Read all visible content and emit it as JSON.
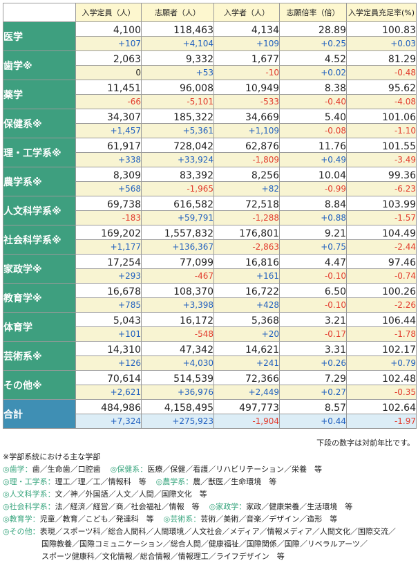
{
  "columns": [
    "入学定員（人）",
    "志願者（人）",
    "入学者（人）",
    "志願倍率（倍）",
    "入学定員充足率(%)"
  ],
  "rows": [
    {
      "label": "医学",
      "values": [
        "4,100",
        "118,463",
        "4,134",
        "28.89",
        "100.83"
      ],
      "changes": [
        "+107",
        "+4,104",
        "+109",
        "+0.25",
        "+0.03"
      ]
    },
    {
      "label": "歯学※",
      "values": [
        "2,063",
        "9,332",
        "1,677",
        "4.52",
        "81.29"
      ],
      "changes": [
        "0",
        "+53",
        "-10",
        "+0.02",
        "-0.48"
      ]
    },
    {
      "label": "薬学",
      "values": [
        "11,451",
        "96,008",
        "10,949",
        "8.38",
        "95.62"
      ],
      "changes": [
        "-66",
        "-5,101",
        "-533",
        "-0.40",
        "-4.08"
      ]
    },
    {
      "label": "保健系※",
      "values": [
        "34,307",
        "185,322",
        "34,669",
        "5.40",
        "101.06"
      ],
      "changes": [
        "+1,457",
        "+5,361",
        "+1,109",
        "-0.08",
        "-1.10"
      ]
    },
    {
      "label": "理・工学系※",
      "values": [
        "61,917",
        "728,042",
        "62,876",
        "11.76",
        "101.55"
      ],
      "changes": [
        "+338",
        "+33,924",
        "-1,809",
        "+0.49",
        "-3.49"
      ]
    },
    {
      "label": "農学系※",
      "values": [
        "8,309",
        "83,392",
        "8,256",
        "10.04",
        "99.36"
      ],
      "changes": [
        "+568",
        "-1,965",
        "+82",
        "-0.99",
        "-6.23"
      ]
    },
    {
      "label": "人文科学系※",
      "values": [
        "69,738",
        "616,582",
        "72,518",
        "8.84",
        "103.99"
      ],
      "changes": [
        "-183",
        "+59,791",
        "-1,288",
        "+0.88",
        "-1.57"
      ]
    },
    {
      "label": "社会科学系※",
      "values": [
        "169,202",
        "1,557,832",
        "176,801",
        "9.21",
        "104.49"
      ],
      "changes": [
        "+1,177",
        "+136,367",
        "-2,863",
        "+0.75",
        "-2.44"
      ]
    },
    {
      "label": "家政学※",
      "values": [
        "17,254",
        "77,099",
        "16,816",
        "4.47",
        "97.46"
      ],
      "changes": [
        "+293",
        "-467",
        "+161",
        "-0.10",
        "-0.74"
      ]
    },
    {
      "label": "教育学※",
      "values": [
        "16,678",
        "108,370",
        "16,722",
        "6.50",
        "100.26"
      ],
      "changes": [
        "+785",
        "+3,398",
        "+428",
        "-0.10",
        "-2.26"
      ]
    },
    {
      "label": "体育学",
      "values": [
        "5,043",
        "16,172",
        "5,368",
        "3.21",
        "106.44"
      ],
      "changes": [
        "+101",
        "-548",
        "+20",
        "-0.17",
        "-1.78"
      ]
    },
    {
      "label": "芸術系※",
      "values": [
        "14,310",
        "47,342",
        "14,621",
        "3.31",
        "102.17"
      ],
      "changes": [
        "+126",
        "+4,030",
        "+241",
        "+0.26",
        "+0.79"
      ]
    },
    {
      "label": "その他※",
      "values": [
        "70,614",
        "514,539",
        "72,366",
        "7.29",
        "102.48"
      ],
      "changes": [
        "+2,621",
        "+36,976",
        "+2,449",
        "+0.27",
        "-0.35"
      ]
    },
    {
      "label": "合計",
      "values": [
        "484,986",
        "4,158,495",
        "497,773",
        "8.57",
        "102.64"
      ],
      "changes": [
        "+7,324",
        "+275,923",
        "-1,904",
        "+0.44",
        "-1.97"
      ],
      "total": true
    }
  ],
  "note": "下段の数字は対前年比です。",
  "legend": {
    "title": "※学部系統における主な学部",
    "lines": [
      [
        {
          "cat": "◎歯学：",
          "text": "歯／生命歯／口腔歯"
        },
        {
          "cat": "◎保健系：",
          "text": "医療／保健／看護／リハビリテーション／栄養　等"
        }
      ],
      [
        {
          "cat": "◎理・工学系：",
          "text": "理工／理／工／情報科　等"
        },
        {
          "cat": "◎農学系：",
          "text": "農／獣医／生命環境　等"
        }
      ],
      [
        {
          "cat": "◎人文科学系：",
          "text": "文／神／外国語／人文／人間／国際文化　等"
        }
      ],
      [
        {
          "cat": "◎社会科学系：",
          "text": "法／経済／経営／商／社会福祉／情報　等"
        },
        {
          "cat": "◎家政学：",
          "text": "家政／健康栄養／生活環境　等"
        }
      ],
      [
        {
          "cat": "◎教育学：",
          "text": "児童／教育／こども／発達科　等"
        },
        {
          "cat": "◎芸術系：",
          "text": "芸術／美術／音楽／デザイン／造形　等"
        }
      ],
      [
        {
          "cat": "◎その他：",
          "text": "表現／スポーツ科／総合人間科／人間環境／人文社会／メディア／情報メディア／人間文化／国際交流／"
        }
      ]
    ],
    "continuation": [
      "国際教養／国際コミュニケーション／総合人間／健康福祉／国際関係／国際／リベラルアーツ／",
      "スポーツ健康科／文化情報／総合情報／情報理工／ライフデザイン　等"
    ]
  },
  "colors": {
    "category_bg": "#3e9f7f",
    "total_bg": "#3f8fb4",
    "header_bg": "#fdf7cf",
    "change_row_bg": "#f8f4d2",
    "total_change_bg": "#dcedf6",
    "positive": "#1f5fbf",
    "negative": "#e23a2c",
    "legend_category": "#3aa67f"
  }
}
